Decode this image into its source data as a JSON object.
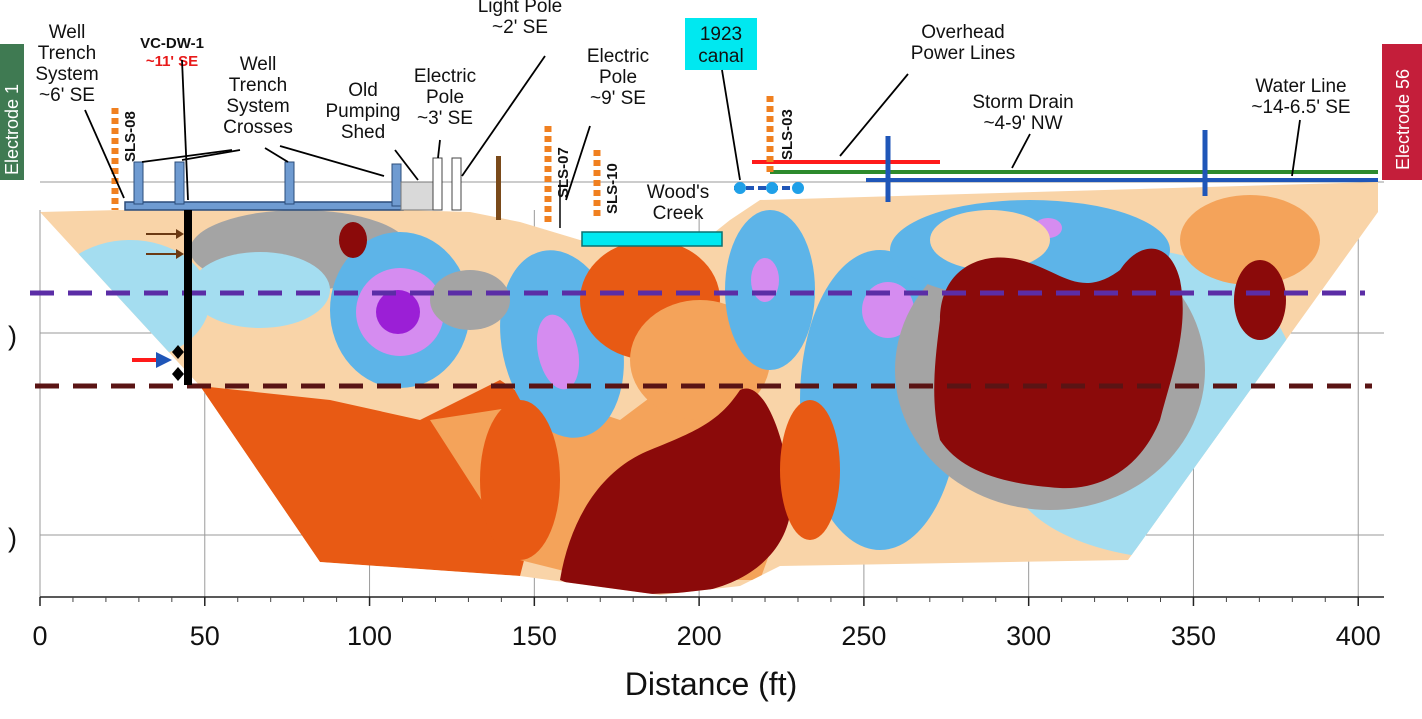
{
  "chart_data": {
    "type": "heatmap",
    "title": "",
    "xlabel": "Distance (ft)",
    "ylabel": "",
    "xlim": [
      0,
      410
    ],
    "x_ticks": [
      0,
      50,
      100,
      150,
      200,
      250,
      300,
      350,
      400
    ],
    "grid": true,
    "partial_left_tick_labels": [
      ")",
      ")"
    ],
    "electrode_labels": {
      "left": "Electrode 1",
      "right": "Electrode 56"
    },
    "annotations": [
      {
        "id": "well-trench-system",
        "lines": [
          "Well",
          "Trench",
          "System",
          "~6' SE"
        ]
      },
      {
        "id": "vc-dw-1",
        "lines": [
          "VC-DW-1",
          "~11' SE"
        ]
      },
      {
        "id": "well-trench-crosses",
        "lines": [
          "Well",
          "Trench",
          "System",
          "Crosses"
        ]
      },
      {
        "id": "old-pumping-shed",
        "lines": [
          "Old",
          "Pumping",
          "Shed"
        ]
      },
      {
        "id": "electric-pole-1",
        "lines": [
          "Electric",
          "Pole",
          "~3' SE"
        ]
      },
      {
        "id": "light-pole",
        "lines": [
          "Light Pole",
          "~2' SE"
        ]
      },
      {
        "id": "electric-pole-2",
        "lines": [
          "Electric",
          "Pole",
          "~9' SE"
        ]
      },
      {
        "id": "canal-1923",
        "lines": [
          "1923",
          "canal"
        ]
      },
      {
        "id": "woods-creek",
        "lines": [
          "Wood's",
          "Creek"
        ]
      },
      {
        "id": "overhead-power-lines",
        "lines": [
          "Overhead",
          "Power Lines"
        ]
      },
      {
        "id": "storm-drain",
        "lines": [
          "Storm Drain",
          "~4-9' NW"
        ]
      },
      {
        "id": "water-line",
        "lines": [
          "Water Line",
          "~14-6.5' SE"
        ]
      }
    ],
    "borings": [
      "SLS-08",
      "SLS-07",
      "SLS-10",
      "SLS-03"
    ],
    "colors": {
      "very_high": "#8b0a0a",
      "high": "#e85a14",
      "medium_high": "#f4a35a",
      "medium": "#f9d4a8",
      "neutral": "#a4a4a4",
      "low": "#a4ddf0",
      "lower": "#5db4e8",
      "lowest": "#1f7fd0",
      "very_low": "#d58cf0",
      "min": "#9b1fd6",
      "dashed_upper": "#5b2da6",
      "dashed_lower": "#5a1414",
      "canal_box": "#00e8f0",
      "electrode_left": "#3f7a52",
      "electrode_right": "#c41e3a",
      "boring": "#f08020",
      "pipe": "#6f9bd1",
      "power_line": "#ff1a1a",
      "storm_drain": "#2d8a2d",
      "water_line": "#1f56b8"
    }
  }
}
